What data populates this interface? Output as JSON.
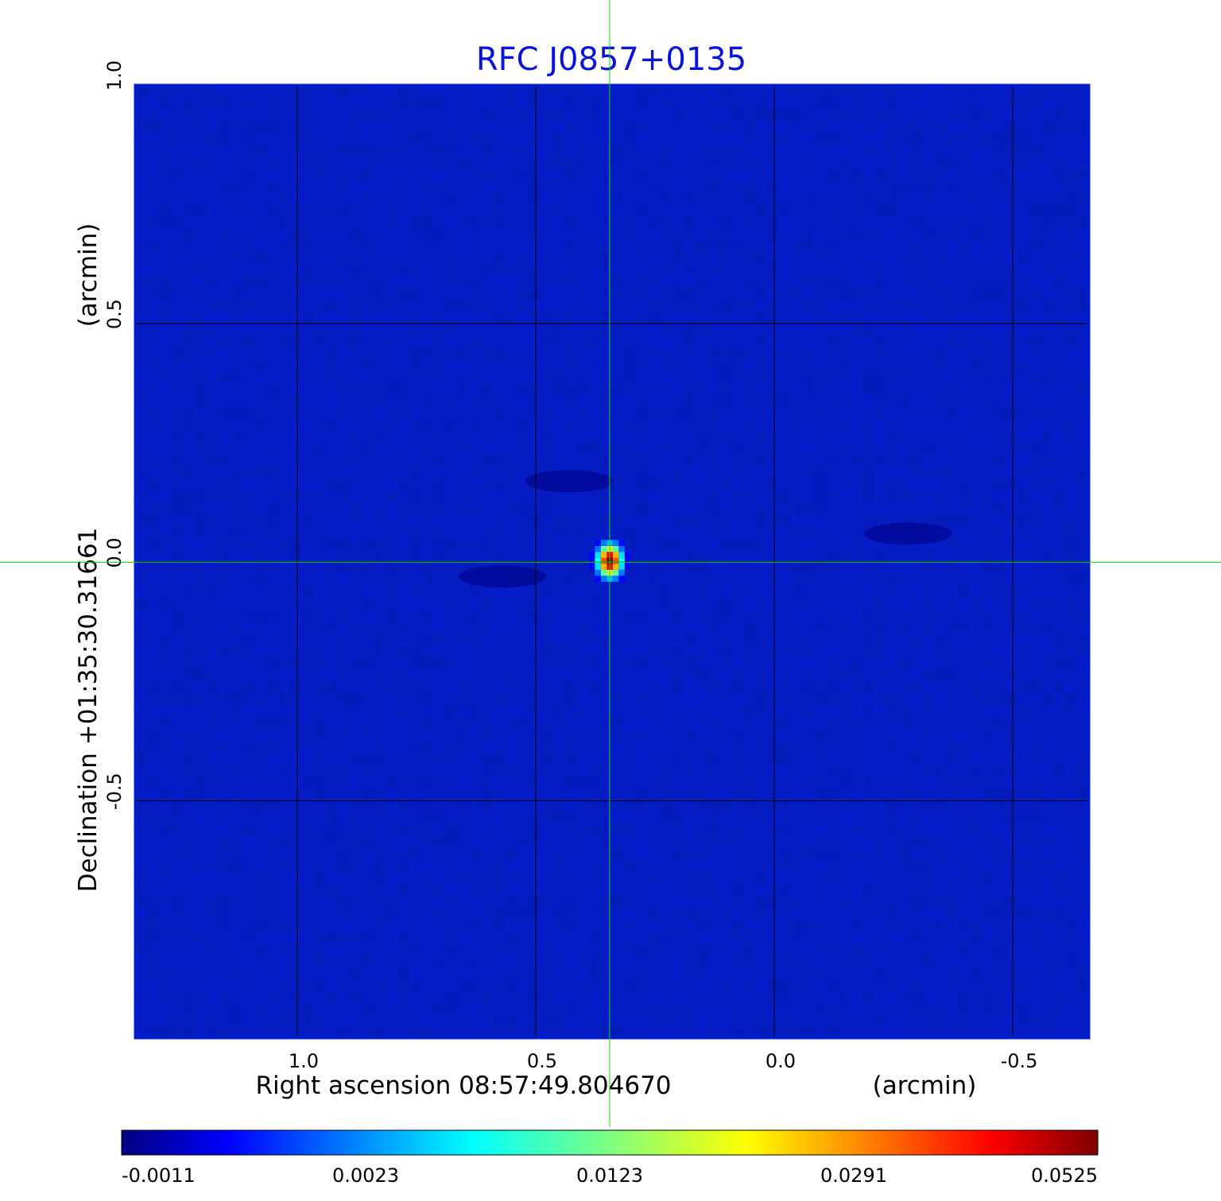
{
  "chart_data": {
    "type": "heatmap",
    "title": "RFC J0857+0135",
    "xlabel": "Right ascension  08:57:49.804670",
    "xunit": "(arcmin)",
    "ylabel": "Declination  +01:35:30.31661",
    "yunit": "(arcmin)",
    "x_ticks": [
      1.0,
      0.5,
      0.0,
      -0.5
    ],
    "x_tick_labels": [
      "1.0",
      "0.5",
      "0.0",
      "-0.5"
    ],
    "y_ticks": [
      1.0,
      0.5,
      0.0,
      -0.5
    ],
    "y_tick_labels": [
      "1.0",
      "0.5",
      "0.0",
      "-0.5"
    ],
    "xlim": [
      1.34,
      -0.66
    ],
    "ylim": [
      -0.997,
      1.0
    ],
    "grid": true,
    "crosshair": {
      "x": 0.345,
      "y": 0.0,
      "color": "#00dd00"
    },
    "colormap": "jet",
    "colorbar_ticks": [
      "-0.0011",
      "0.0023",
      "0.0123",
      "0.0291",
      "0.0525"
    ],
    "colorbar_range": [
      -0.0011,
      0.0525
    ],
    "background_value": 0.0005,
    "source": {
      "x": 0.345,
      "y": 0.003,
      "peak": 0.0525,
      "sigma_x": 0.018,
      "sigma_y": 0.024
    },
    "features": [
      {
        "x": 0.57,
        "y": -0.03,
        "value": -0.0009
      },
      {
        "x": 0.43,
        "y": 0.17,
        "value": -0.0008
      },
      {
        "x": -0.28,
        "y": 0.06,
        "value": -0.0007
      }
    ]
  }
}
